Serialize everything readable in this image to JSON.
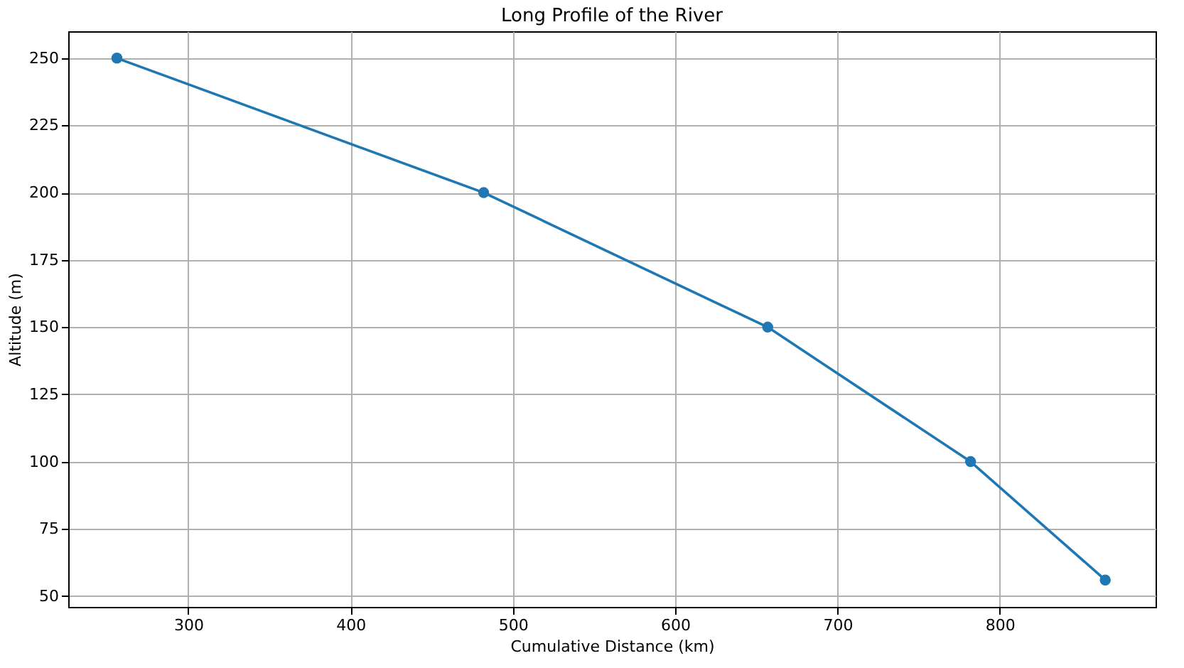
{
  "chart_data": {
    "type": "line",
    "title": "Long Profile of the River",
    "xlabel": "Cumulative Distance (km)",
    "ylabel": "Altitude (m)",
    "x": [
      256,
      482,
      657,
      782,
      865
    ],
    "series": [
      {
        "color": "#1f77b4",
        "values": [
          250,
          200,
          150,
          100,
          56
        ]
      }
    ],
    "xlim": [
      226,
      896
    ],
    "xticks": [
      300,
      400,
      500,
      600,
      700,
      800
    ],
    "ylim": [
      46,
      260
    ],
    "yticks": [
      50,
      75,
      100,
      125,
      150,
      175,
      200,
      225,
      250
    ],
    "grid": true,
    "marker": "circle",
    "line_style": "solid"
  }
}
